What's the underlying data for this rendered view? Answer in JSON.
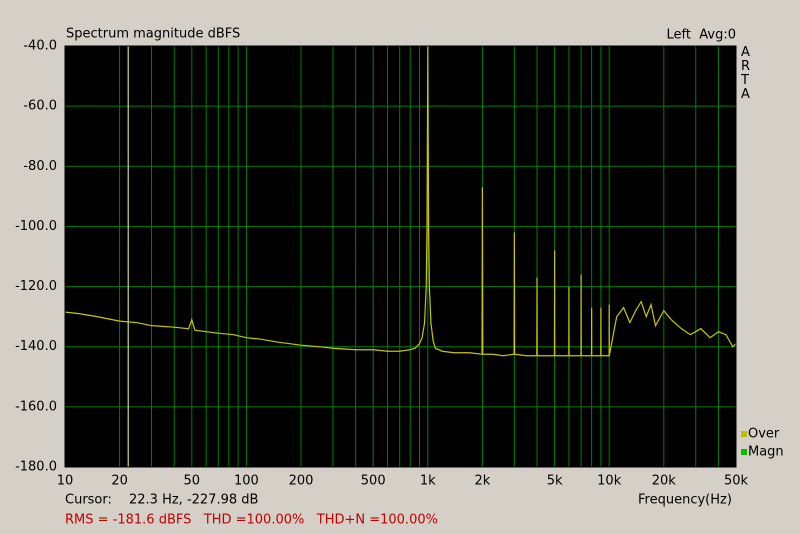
{
  "chart_data": {
    "type": "line",
    "title": "Spectrum magnitude dBFS",
    "channel_label": "Left  Avg:0",
    "brand": "ARTA",
    "x_label": "Frequency(Hz)",
    "log_x": true,
    "xlim": [
      10,
      50000
    ],
    "ylim": [
      -180,
      -40
    ],
    "xticks": [
      10,
      20,
      50,
      100,
      200,
      500,
      {
        "value": 1000,
        "label": "1k"
      },
      {
        "value": 2000,
        "label": "2k"
      },
      {
        "value": 5000,
        "label": "5k"
      },
      {
        "value": 10000,
        "label": "10k"
      },
      {
        "value": 20000,
        "label": "20k"
      },
      {
        "value": 50000,
        "label": "50k"
      }
    ],
    "x_minor_grid": [
      30,
      40,
      60,
      70,
      80,
      90,
      300,
      400,
      600,
      700,
      800,
      900,
      3000,
      4000,
      6000,
      7000,
      8000,
      9000,
      30000,
      40000
    ],
    "yticks": [
      {
        "value": -40,
        "label": "-40.0"
      },
      {
        "value": -60,
        "label": "-60.0"
      },
      {
        "value": -80,
        "label": "-80.0"
      },
      {
        "value": -100,
        "label": "-100.0"
      },
      {
        "value": -120,
        "label": "-120.0"
      },
      {
        "value": -140,
        "label": "-140.0"
      },
      {
        "value": -160,
        "label": "-160.0"
      },
      {
        "value": -180,
        "label": "-180.0"
      }
    ],
    "grid": true,
    "grid_color": "#008000",
    "legend": [
      {
        "name": "Over",
        "color": "#c0c000"
      },
      {
        "name": "Magn",
        "color": "#00c000"
      }
    ],
    "cursor": {
      "x": 22.3,
      "label": "Cursor:",
      "text": "22.3 Hz, -227.98 dB",
      "color": "#ffff99"
    },
    "status": "RMS = -181.6 dBFS   THD =100.00%   THD+N =100.00%",
    "series": [
      {
        "color": "#c8c800",
        "x": [
          10,
          12,
          15,
          20,
          25,
          30,
          40,
          48,
          50,
          52,
          60,
          70,
          85,
          100,
          120,
          150,
          200,
          250,
          300,
          400,
          500,
          600,
          700,
          800,
          850,
          900,
          930,
          960,
          980,
          990,
          995,
          1000,
          1005,
          1010,
          1020,
          1040,
          1070,
          1100,
          1200,
          1400,
          1700,
          1990,
          2000,
          2010,
          2300,
          2600,
          2990,
          3000,
          3010,
          3500,
          3990,
          4000,
          4010,
          4500,
          4990,
          5000,
          5010,
          5500,
          5990,
          6000,
          6010,
          6990,
          7000,
          7010,
          7990,
          8000,
          8010,
          8990,
          9000,
          9010,
          9990,
          10000,
          10010,
          11000,
          12000,
          13000,
          14000,
          15000,
          16000,
          17000,
          18000,
          20000,
          22000,
          25000,
          28000,
          32000,
          36000,
          40000,
          44000,
          48000,
          50000
        ],
        "values": [
          -128.5,
          -129,
          -130,
          -131.5,
          -132,
          -133,
          -133.5,
          -134,
          -131,
          -134.5,
          -135,
          -135.5,
          -136,
          -137,
          -137.5,
          -138.5,
          -139.5,
          -140,
          -140.5,
          -141,
          -141,
          -141.5,
          -141.5,
          -141,
          -140.5,
          -139,
          -137,
          -132,
          -120,
          -100,
          -70,
          -40,
          -70,
          -100,
          -120,
          -132,
          -138,
          -140.5,
          -141.5,
          -142,
          -142,
          -142.5,
          -87,
          -142.5,
          -142.5,
          -143,
          -142.5,
          -102,
          -142.5,
          -143,
          -143,
          -117,
          -143,
          -143,
          -143,
          -108,
          -143,
          -143,
          -143,
          -120,
          -143,
          -143,
          -116,
          -143,
          -143,
          -127,
          -143,
          -143,
          -127,
          -143,
          -143,
          -126,
          -143,
          -130,
          -127,
          -132,
          -128,
          -125,
          -130,
          -126,
          -133,
          -128,
          -131,
          -134,
          -136,
          -134,
          -137,
          -135,
          -136,
          -140,
          -139
        ]
      }
    ]
  }
}
